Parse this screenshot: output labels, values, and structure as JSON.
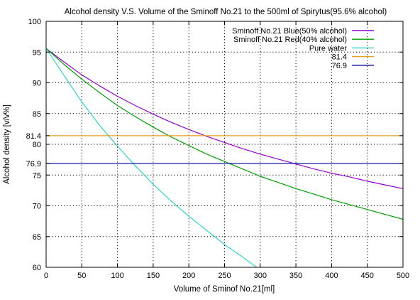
{
  "chart_data": {
    "type": "line",
    "title": "Alcohol density V.S. Volume of the Sminoff No.21 to the 500ml of Spirytus(95.6% alcohol)",
    "xlabel": "Volume of Sminof No.21[ml]",
    "ylabel": "Alcohol density [v/v%]",
    "xlim": [
      0,
      500
    ],
    "ylim": [
      60,
      100
    ],
    "xticks": [
      "0",
      "50",
      "100",
      "150",
      "200",
      "250",
      "300",
      "350",
      "400",
      "450",
      "500"
    ],
    "yticks": [
      "60",
      "65",
      "70",
      "75",
      "76.9",
      "80",
      "81.4",
      "85",
      "90",
      "95",
      "100"
    ],
    "grid": true,
    "legend_position": "top-right",
    "series": [
      {
        "name": "Sminoff No.21 Blue(50% alcohol)",
        "color": "#9400d3",
        "x": [
          0,
          25,
          50,
          75,
          100,
          125,
          150,
          175,
          200,
          225,
          250,
          275,
          300,
          325,
          350,
          375,
          400,
          425,
          450,
          475,
          500
        ],
        "y": [
          95.6,
          93.4,
          91.3,
          89.5,
          87.8,
          86.3,
          84.9,
          83.6,
          82.4,
          81.3,
          80.3,
          79.3,
          78.4,
          77.6,
          76.8,
          76.0,
          75.3,
          74.7,
          74.0,
          73.4,
          72.8
        ]
      },
      {
        "name": "Sminoff No.21 Red(40% alcohol)",
        "color": "#009e00",
        "x": [
          0,
          25,
          50,
          75,
          100,
          125,
          150,
          175,
          200,
          225,
          250,
          275,
          300,
          325,
          350,
          375,
          400,
          425,
          450,
          475,
          500
        ],
        "y": [
          95.6,
          93.0,
          90.6,
          88.4,
          86.3,
          84.5,
          82.8,
          81.2,
          79.8,
          78.4,
          77.2,
          76.0,
          74.8,
          73.8,
          72.8,
          71.9,
          71.0,
          70.2,
          69.4,
          68.6,
          67.8
        ]
      },
      {
        "name": "Pure water",
        "color": "#2fd2d2",
        "x": [
          0,
          25,
          50,
          75,
          100,
          125,
          150,
          175,
          200,
          225,
          250,
          275,
          295
        ],
        "y": [
          95.6,
          91.2,
          86.9,
          83.1,
          79.7,
          76.5,
          73.5,
          70.8,
          68.3,
          66.0,
          63.7,
          61.7,
          60.0
        ]
      },
      {
        "name": "81.4",
        "color": "#e6a118",
        "x": [
          0,
          500
        ],
        "y": [
          81.4,
          81.4
        ]
      },
      {
        "name": "76.9",
        "color": "#0000a0",
        "x": [
          0,
          500
        ],
        "y": [
          76.9,
          76.9
        ]
      }
    ]
  }
}
